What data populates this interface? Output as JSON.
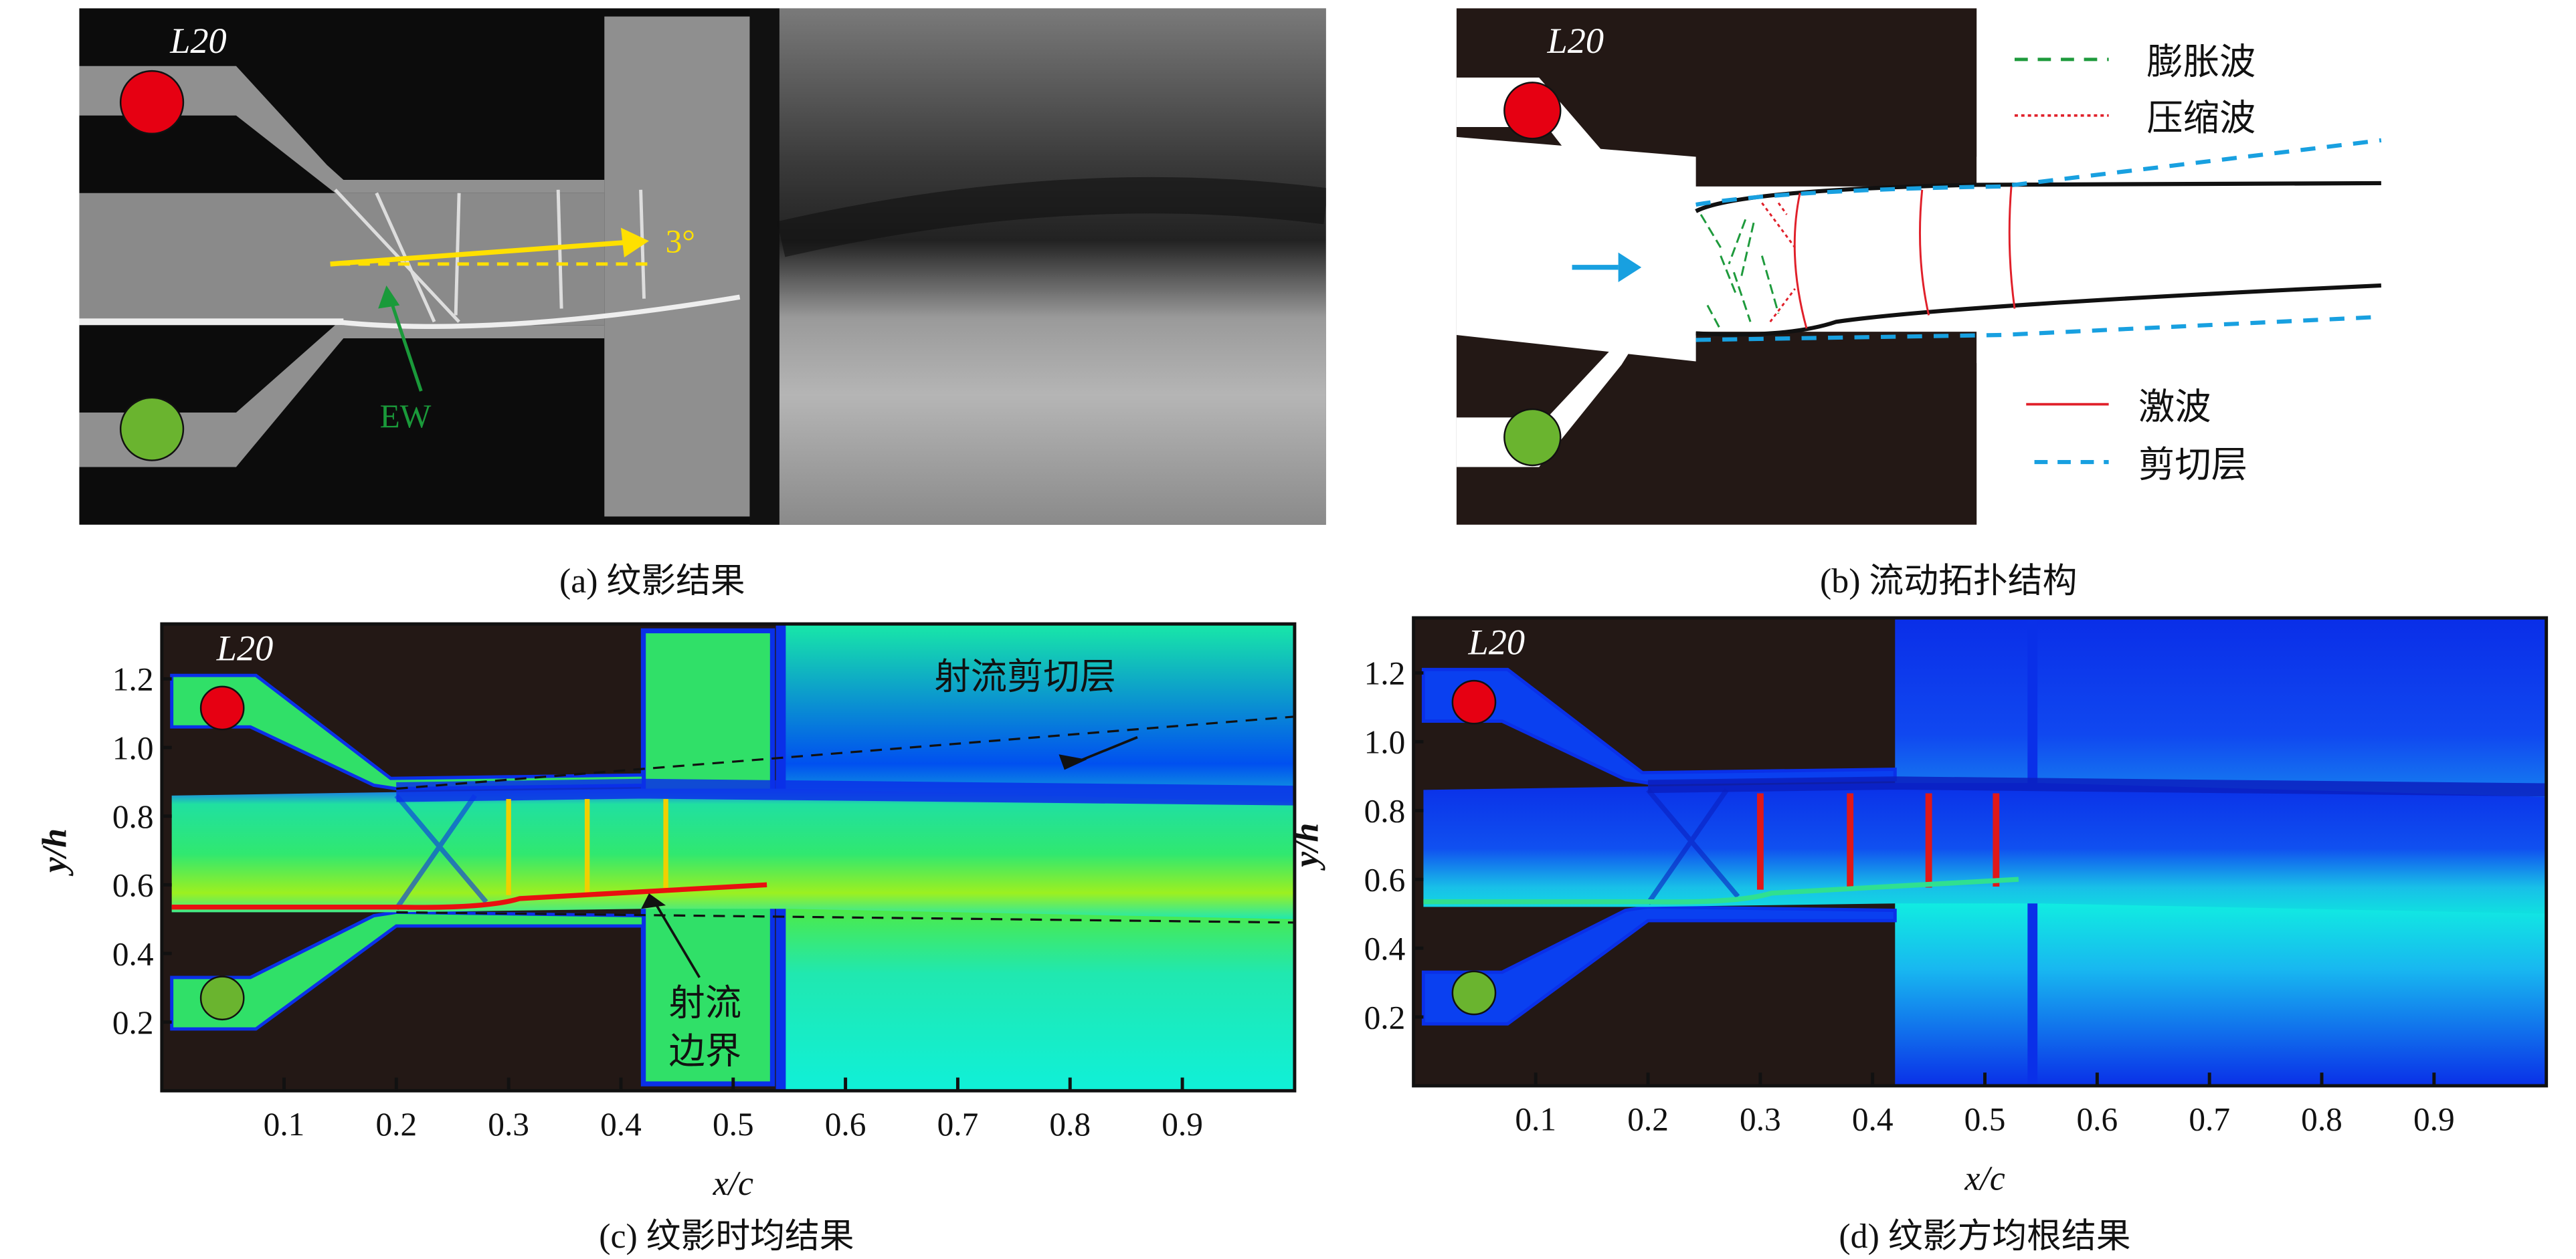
{
  "panels": {
    "a": {
      "caption": "(a) 纹影结果",
      "model_label": "L20",
      "angle_label": "3°",
      "ew_label": "EW"
    },
    "b": {
      "caption": "(b) 流动拓扑结构",
      "model_label": "L20",
      "legend": [
        {
          "label": "膨胀波",
          "style": "dashed",
          "color": "#1e9a3c"
        },
        {
          "label": "压缩波",
          "style": "dotted",
          "color": "#e0202a"
        },
        {
          "label": "激波",
          "style": "solid",
          "color": "#e0202a"
        },
        {
          "label": "剪切层",
          "style": "dashed",
          "color": "#18a0e0"
        }
      ]
    },
    "c": {
      "caption": "(c) 纹影时均结果",
      "model_label": "L20",
      "shear_layer_label": "射流剪切层",
      "boundary_label_1": "射流",
      "boundary_label_2": "边界"
    },
    "d": {
      "caption": "(d) 纹影方均根结果",
      "model_label": "L20"
    }
  },
  "colors": {
    "solid_wall": "#231815",
    "plenum_red": "#e60012",
    "plenum_green": "#6ab42f",
    "annotation_yellow": "#ffe000",
    "annotation_green": "#1a9a3a",
    "flow_arrow": "#18a0e0"
  },
  "chart_data": [
    {
      "type": "heatmap",
      "panel": "c",
      "xlabel": "x/c",
      "ylabel": "y/h",
      "xlim": [
        0,
        1.0
      ],
      "ylim": [
        0,
        1.36
      ],
      "xticks": [
        "0.1",
        "0.2",
        "0.3",
        "0.4",
        "0.5",
        "0.6",
        "0.7",
        "0.8",
        "0.9"
      ],
      "yticks": [
        "0.2",
        "0.4",
        "0.6",
        "0.8",
        "1.0",
        "1.2"
      ],
      "colormap": "jet",
      "annotations": [
        {
          "type": "dashed-line",
          "points": [
            [
              0.2,
              0.88
            ],
            [
              1.0,
              1.09
            ]
          ]
        },
        {
          "type": "dashed-line",
          "points": [
            [
              0.2,
              0.52
            ],
            [
              1.0,
              0.49
            ]
          ]
        }
      ]
    },
    {
      "type": "heatmap",
      "panel": "d",
      "xlabel": "x/c",
      "ylabel": "y/h",
      "xlim": [
        0,
        1.0
      ],
      "ylim": [
        0,
        1.36
      ],
      "xticks": [
        "0.1",
        "0.2",
        "0.3",
        "0.4",
        "0.5",
        "0.6",
        "0.7",
        "0.8",
        "0.9"
      ],
      "yticks": [
        "0.2",
        "0.4",
        "0.6",
        "0.8",
        "1.0",
        "1.2"
      ],
      "colormap": "jet"
    }
  ]
}
